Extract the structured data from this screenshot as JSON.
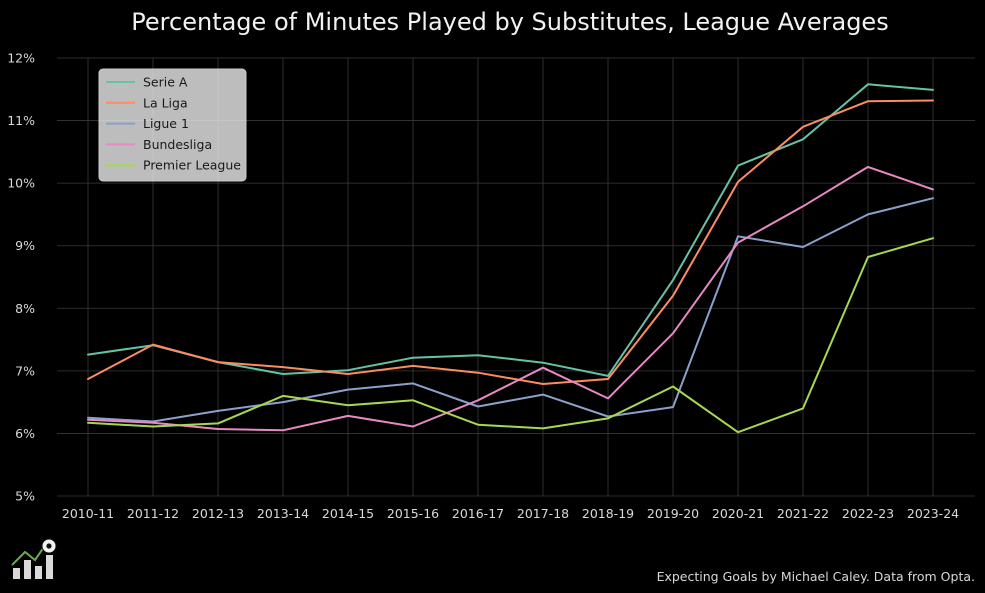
{
  "chart_data": {
    "type": "line",
    "title": "Percentage of Minutes Played by Substitutes, League Averages",
    "xlabel": "",
    "ylabel": "",
    "categories": [
      "2010-11",
      "2011-12",
      "2012-13",
      "2013-14",
      "2014-15",
      "2015-16",
      "2016-17",
      "2017-18",
      "2018-19",
      "2019-20",
      "2020-21",
      "2021-22",
      "2022-23",
      "2023-24"
    ],
    "ylim": [
      5,
      12
    ],
    "yticks": [
      5,
      6,
      7,
      8,
      9,
      10,
      11,
      12
    ],
    "ytick_labels": [
      "5%",
      "6%",
      "7%",
      "8%",
      "9%",
      "10%",
      "11%",
      "12%"
    ],
    "grid": true,
    "legend_position": "top-left",
    "series": [
      {
        "name": "Serie A",
        "color": "#66c2a5",
        "values": [
          7.26,
          7.41,
          7.14,
          6.95,
          7.01,
          7.21,
          7.25,
          7.13,
          6.92,
          8.45,
          10.28,
          10.7,
          11.58,
          11.49
        ]
      },
      {
        "name": "La Liga",
        "color": "#fc8d62",
        "values": [
          6.87,
          7.42,
          7.14,
          7.06,
          6.95,
          7.08,
          6.97,
          6.79,
          6.87,
          8.2,
          10.02,
          10.9,
          11.31,
          11.32
        ]
      },
      {
        "name": "Ligue 1",
        "color": "#8da0cb",
        "values": [
          6.25,
          6.19,
          6.36,
          6.5,
          6.7,
          6.8,
          6.43,
          6.62,
          6.27,
          6.42,
          9.15,
          8.98,
          9.5,
          9.76
        ]
      },
      {
        "name": "Bundesliga",
        "color": "#e78ac3",
        "values": [
          6.22,
          6.17,
          6.07,
          6.05,
          6.28,
          6.11,
          6.53,
          7.05,
          6.56,
          7.6,
          9.05,
          9.63,
          10.26,
          9.9
        ]
      },
      {
        "name": "Premier League",
        "color": "#a6d854",
        "values": [
          6.17,
          6.11,
          6.16,
          6.6,
          6.45,
          6.53,
          6.14,
          6.08,
          6.24,
          6.75,
          6.02,
          6.4,
          8.82,
          9.12
        ]
      }
    ]
  },
  "footer": {
    "credit": "Expecting Goals by Michael Caley. Data from Opta.",
    "logo_icon": "bar-chart-soccer-ball-icon"
  }
}
